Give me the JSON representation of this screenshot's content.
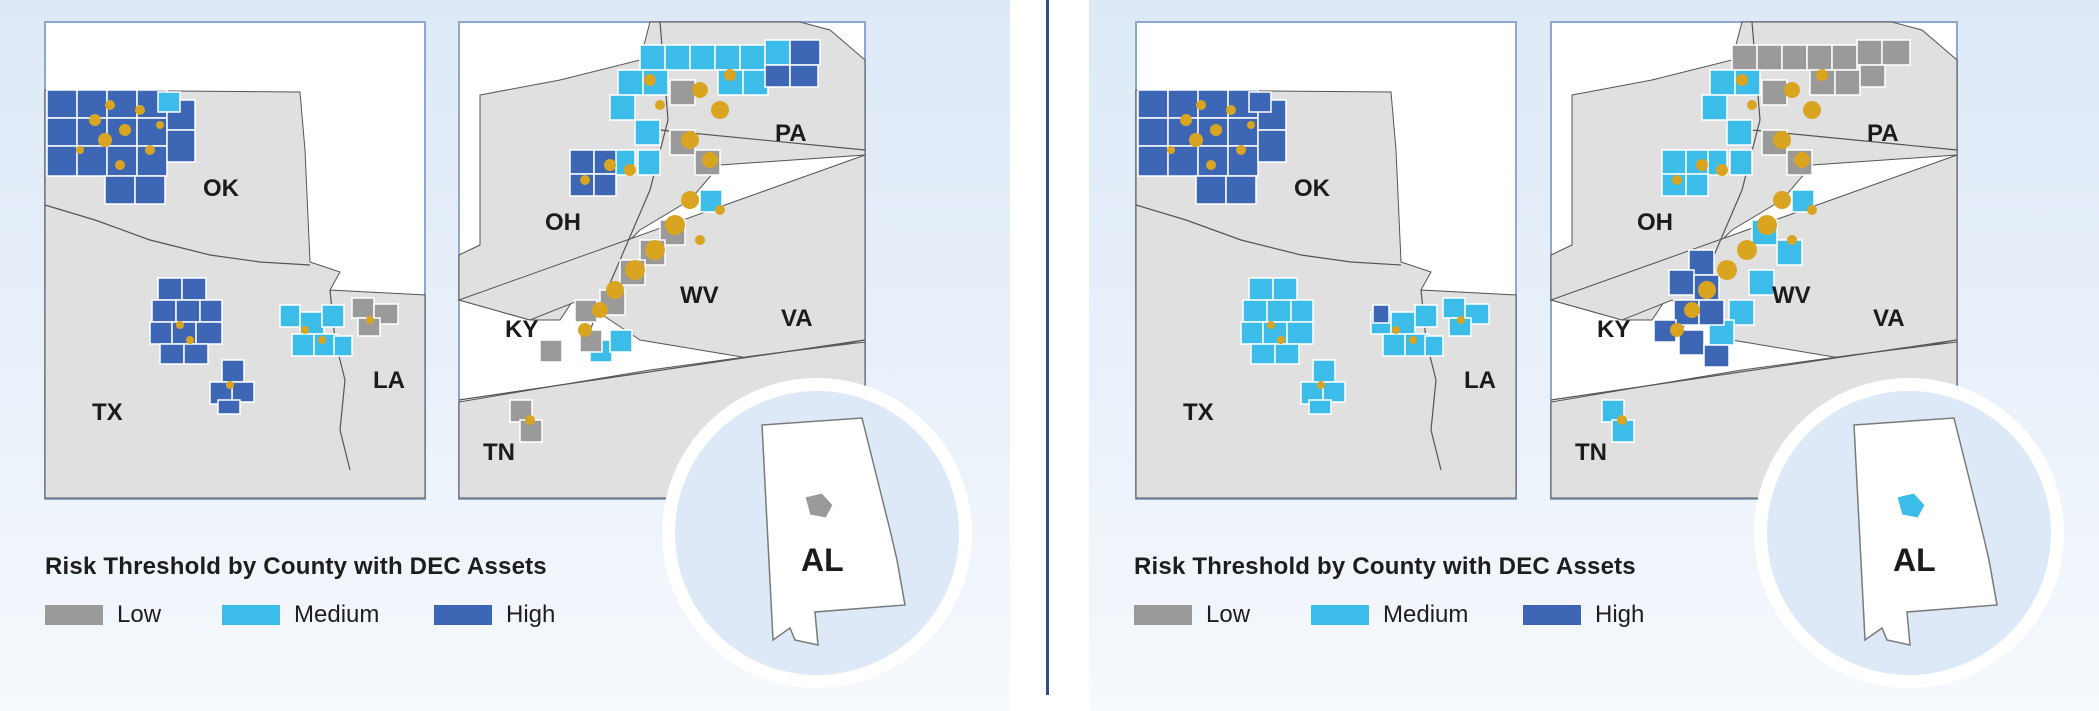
{
  "panels": [
    {
      "id": "before",
      "state_labels": {
        "ok": "OK",
        "tx": "TX",
        "la": "LA",
        "pa": "PA",
        "oh": "OH",
        "wv": "WV",
        "ky": "KY",
        "va": "VA",
        "tn": "TN",
        "al": "AL"
      },
      "legend_title": "Risk Threshold by County with DEC Assets",
      "legend": [
        {
          "label": "Low",
          "color": "#9a9a9a"
        },
        {
          "label": "Medium",
          "color": "#3bbce9"
        },
        {
          "label": "High",
          "color": "#3d67b5"
        }
      ],
      "alabama_county_risk": "Low"
    },
    {
      "id": "after",
      "state_labels": {
        "ok": "OK",
        "tx": "TX",
        "la": "LA",
        "pa": "PA",
        "oh": "OH",
        "wv": "WV",
        "ky": "KY",
        "va": "VA",
        "tn": "TN",
        "al": "AL"
      },
      "legend_title": "Risk Threshold by County with DEC Assets",
      "legend": [
        {
          "label": "Low",
          "color": "#9a9a9a"
        },
        {
          "label": "Medium",
          "color": "#3bbce9"
        },
        {
          "label": "High",
          "color": "#3d67b5"
        }
      ],
      "alabama_county_risk": "Medium"
    }
  ],
  "colors": {
    "state_fill": "#e0e0e0",
    "frame": "#8fa6cf",
    "asset_dots": "#d9a521",
    "low": "#9a9a9a",
    "medium": "#3bbce9",
    "high": "#3d67b5"
  }
}
